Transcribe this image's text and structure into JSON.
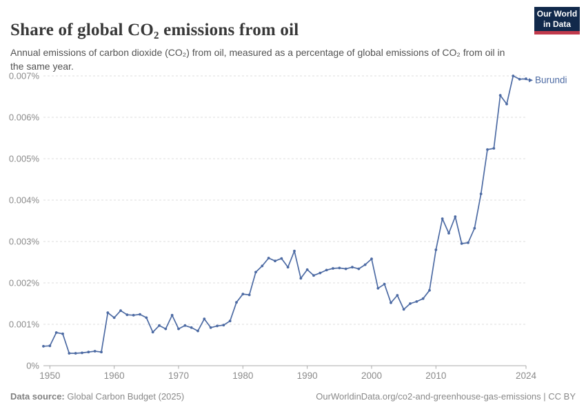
{
  "header": {
    "title": "Share of global CO₂ emissions from oil",
    "subtitle": "Annual emissions of carbon dioxide (CO₂) from oil, measured as a percentage of global emissions of CO₂ from oil in the same year.",
    "logo": {
      "line1": "Our World",
      "line2": "in Data"
    }
  },
  "footer": {
    "source_label": "Data source:",
    "source_value": " Global Carbon Budget (2025)",
    "credit": "OurWorldinData.org/co2-and-greenhouse-gas-emissions | CC BY"
  },
  "colors": {
    "series": "#4c6aa3",
    "gridline": "#dedede",
    "axis": "#a9a9a9",
    "tick_label": "#8a8a8a",
    "logo_navy": "#11294b",
    "logo_red": "#c13a4c"
  },
  "chart_data": {
    "type": "line",
    "title": "Share of global CO₂ emissions from oil",
    "series_label": "Burundi",
    "unit": "%",
    "ylim": [
      0,
      0.007
    ],
    "grid": true,
    "ytick_labels": [
      "0%",
      "0.001%",
      "0.002%",
      "0.003%",
      "0.004%",
      "0.005%",
      "0.006%",
      "0.007%"
    ],
    "xticks": [
      1950,
      1960,
      1970,
      1980,
      1990,
      2000,
      2010,
      2024
    ],
    "x": [
      1949,
      1950,
      1951,
      1952,
      1953,
      1954,
      1955,
      1956,
      1957,
      1958,
      1959,
      1960,
      1961,
      1962,
      1963,
      1964,
      1965,
      1966,
      1967,
      1968,
      1969,
      1970,
      1971,
      1972,
      1973,
      1974,
      1975,
      1976,
      1977,
      1978,
      1979,
      1980,
      1981,
      1982,
      1983,
      1984,
      1985,
      1986,
      1987,
      1988,
      1989,
      1990,
      1991,
      1992,
      1993,
      1994,
      1995,
      1996,
      1997,
      1998,
      1999,
      2000,
      2001,
      2002,
      2003,
      2004,
      2005,
      2006,
      2007,
      2008,
      2009,
      2010,
      2011,
      2012,
      2013,
      2014,
      2015,
      2016,
      2017,
      2018,
      2019,
      2020,
      2021,
      2022,
      2023,
      2024
    ],
    "values": [
      0.00047,
      0.00048,
      0.0008,
      0.00077,
      0.0003,
      0.0003,
      0.00031,
      0.00033,
      0.00035,
      0.00033,
      0.00128,
      0.00116,
      0.00133,
      0.00123,
      0.00122,
      0.00124,
      0.00116,
      0.00081,
      0.00097,
      0.00089,
      0.00122,
      0.00089,
      0.00097,
      0.00092,
      0.00084,
      0.00113,
      0.00092,
      0.00096,
      0.00098,
      0.00108,
      0.00153,
      0.00173,
      0.00171,
      0.00226,
      0.00241,
      0.0026,
      0.00253,
      0.00259,
      0.00238,
      0.00277,
      0.00211,
      0.00232,
      0.00218,
      0.00224,
      0.00231,
      0.00235,
      0.00236,
      0.00234,
      0.00238,
      0.00234,
      0.00244,
      0.00258,
      0.00187,
      0.00197,
      0.00152,
      0.0017,
      0.00136,
      0.0015,
      0.00155,
      0.00162,
      0.00182,
      0.0028,
      0.00355,
      0.0032,
      0.0036,
      0.00295,
      0.00297,
      0.00332,
      0.00415,
      0.00522,
      0.00525,
      0.00653,
      0.00632,
      0.007,
      0.00692,
      0.00693
    ]
  }
}
